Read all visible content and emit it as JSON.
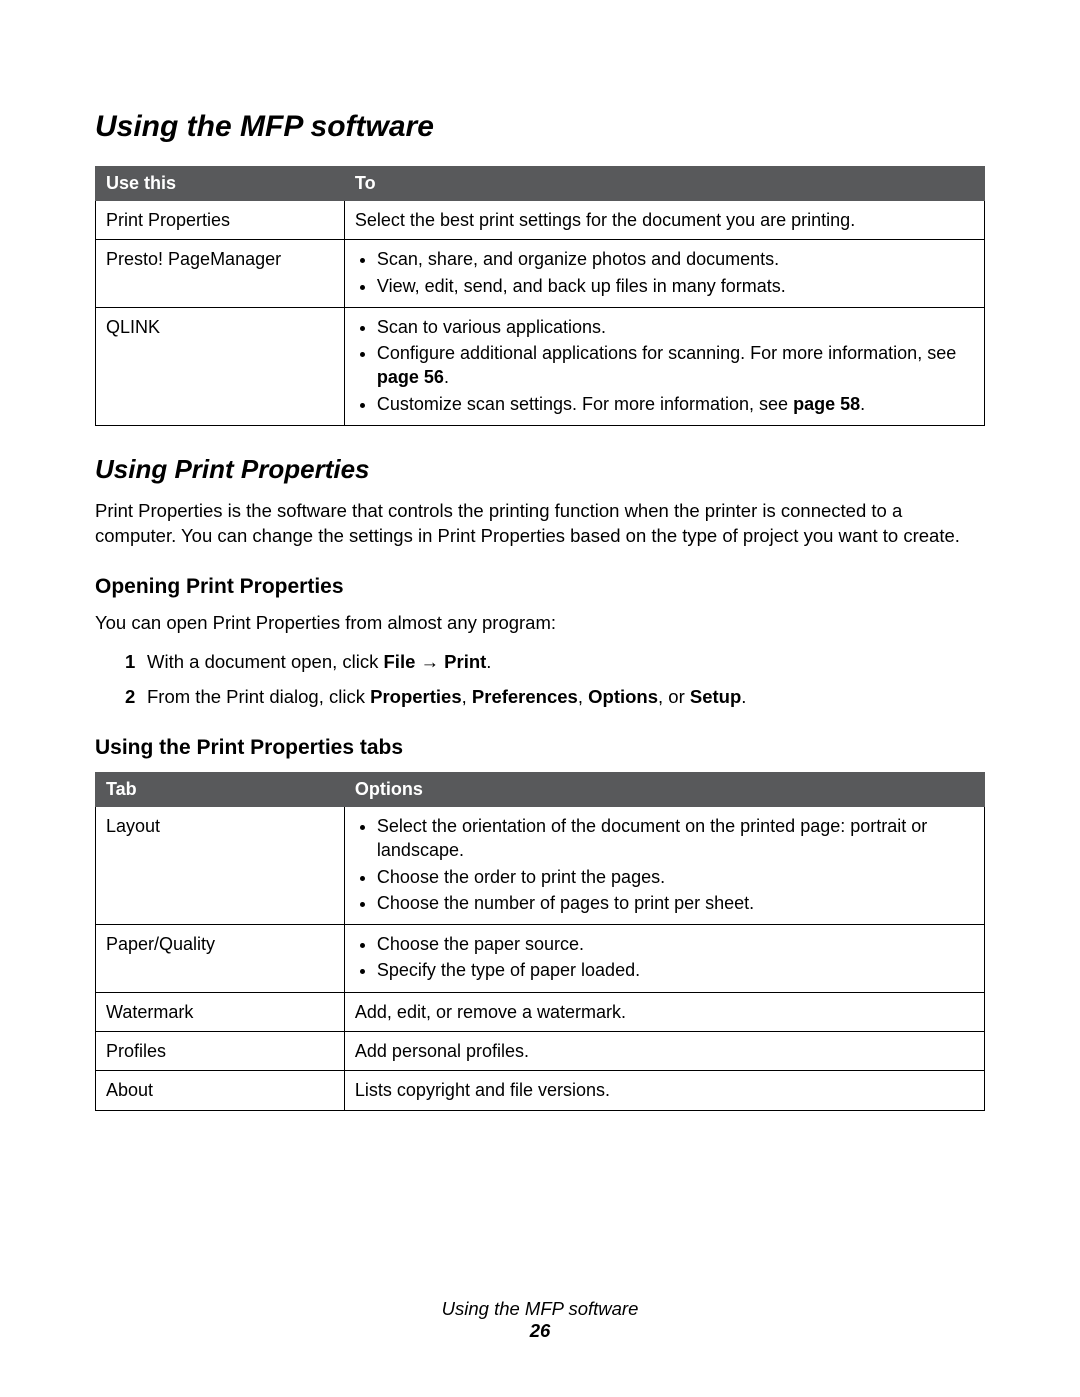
{
  "heading_main": "Using the MFP software",
  "table1": {
    "headers": [
      "Use this",
      "To"
    ],
    "rows": [
      {
        "col1": "Print Properties",
        "col2_type": "text",
        "col2_text": "Select the best print settings for the document you are printing."
      },
      {
        "col1": "Presto! PageManager",
        "col2_type": "list",
        "items": [
          {
            "text": "Scan, share, and organize photos and documents."
          },
          {
            "text": "View, edit, send, and back up files in many formats."
          }
        ]
      },
      {
        "col1": "QLINK",
        "col2_type": "list",
        "items": [
          {
            "text": "Scan to various applications."
          },
          {
            "pre": "Configure additional applications for scanning. For more information, see ",
            "bold": "page 56",
            "post": "."
          },
          {
            "pre": "Customize scan settings. For more information, see ",
            "bold": "page 58",
            "post": "."
          }
        ]
      }
    ]
  },
  "heading_pp": "Using Print Properties",
  "para_pp": "Print Properties is the software that controls the printing function when the printer is connected to a computer. You can change the settings in Print Properties based on the type of project you want to create.",
  "heading_open": "Opening Print Properties",
  "para_open": "You can open Print Properties from almost any program:",
  "steps": [
    {
      "num": "1",
      "pre": "With a document open, click ",
      "b1": "File",
      "arrow": " → ",
      "b2": "Print",
      "post": "."
    },
    {
      "num": "2",
      "pre": "From the Print dialog, click ",
      "b1": "Properties",
      "sep1": ", ",
      "b2": "Preferences",
      "sep2": ", ",
      "b3": "Options",
      "sep3": ", or ",
      "b4": "Setup",
      "post": "."
    }
  ],
  "heading_tabs": "Using the Print Properties tabs",
  "table2": {
    "headers": [
      "Tab",
      "Options"
    ],
    "rows": [
      {
        "col1": "Layout",
        "col2_type": "list",
        "items": [
          {
            "text": "Select the orientation of the document on the printed page: portrait or landscape."
          },
          {
            "text": "Choose the order to print the pages."
          },
          {
            "text": "Choose the number of pages to print per sheet."
          }
        ]
      },
      {
        "col1": "Paper/Quality",
        "col2_type": "list",
        "items": [
          {
            "text": "Choose the paper source."
          },
          {
            "text": "Specify the type of paper loaded."
          }
        ]
      },
      {
        "col1": "Watermark",
        "col2_type": "text",
        "col2_text": "Add, edit, or remove a watermark."
      },
      {
        "col1": "Profiles",
        "col2_type": "text",
        "col2_text": "Add personal profiles."
      },
      {
        "col1": "About",
        "col2_type": "text",
        "col2_text": "Lists copyright and file versions."
      }
    ]
  },
  "footer_title": "Using the MFP software",
  "footer_page": "26"
}
